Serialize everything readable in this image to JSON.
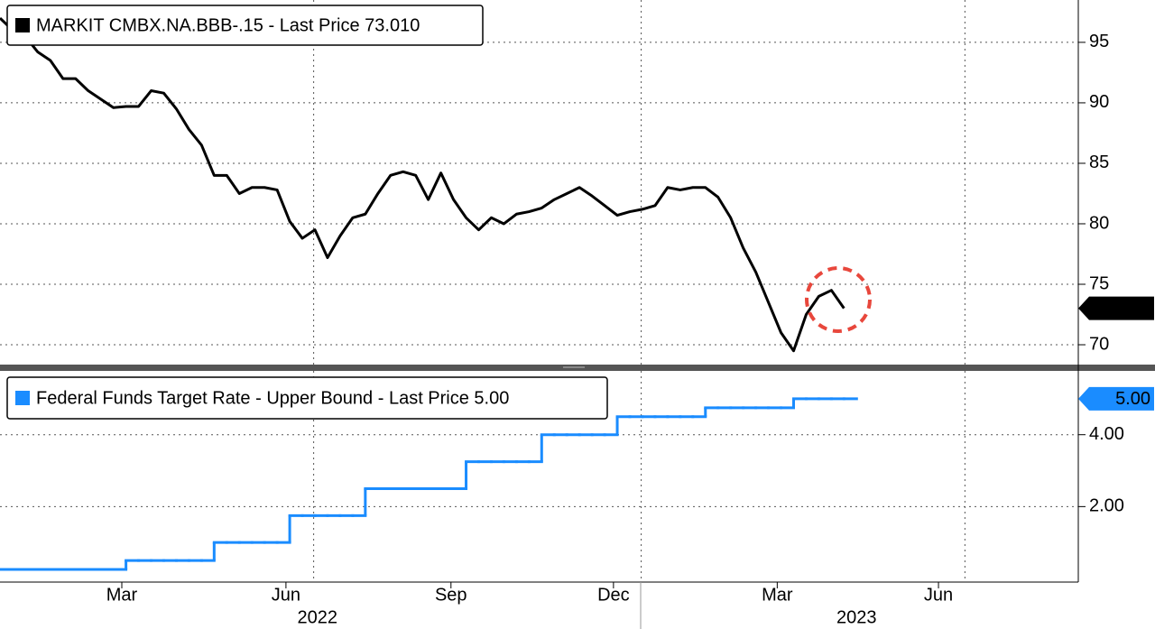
{
  "chart_data": [
    {
      "type": "line",
      "categories": [
        null,
        null,
        null,
        null,
        null,
        null,
        null,
        null,
        null,
        null,
        null,
        null,
        null,
        null,
        null,
        null,
        null,
        null,
        null,
        null,
        null,
        null,
        null,
        null,
        null,
        null,
        null,
        null,
        null,
        null,
        null,
        null,
        null,
        null,
        null,
        null,
        null,
        null,
        null,
        null,
        null,
        null,
        null,
        null,
        null,
        null,
        null,
        null,
        null,
        null,
        null,
        null,
        null,
        null,
        null,
        null,
        null,
        null,
        null,
        null,
        null,
        null,
        null,
        null,
        null,
        null,
        null,
        null
      ],
      "series": [
        {
          "name": "MARKIT CMBX.NA.BBB-.15 - Last Price 73.010",
          "color": "#000000",
          "values": [
            97,
            96,
            95.5,
            94.2,
            93.5,
            92.0,
            92.0,
            91.0,
            90.3,
            89.6,
            89.7,
            89.7,
            91.0,
            90.8,
            89.5,
            87.8,
            86.5,
            84.0,
            84.0,
            82.5,
            83.0,
            83.0,
            82.8,
            80.2,
            78.8,
            79.5,
            77.2,
            79.0,
            80.5,
            80.8,
            82.5,
            84.0,
            84.3,
            84.0,
            82.0,
            84.2,
            82.0,
            80.5,
            79.5,
            80.5,
            80.0,
            80.8,
            81.0,
            81.3,
            82.0,
            82.5,
            83.0,
            82.3,
            81.5,
            80.7,
            81.0,
            81.2,
            81.5,
            83.0,
            82.8,
            83.0,
            83.0,
            82.2,
            80.5,
            78.0,
            76.0,
            73.5,
            71.0,
            69.5,
            72.5,
            74.0,
            74.5,
            73.01
          ]
        }
      ],
      "last_label": "73.010",
      "xlim": [
        0,
        85.6
      ],
      "xgrid": [
        24.9,
        50.9,
        76.6
      ],
      "ylim": [
        68.36,
        98.5
      ],
      "yticks": [
        70,
        75,
        80,
        85,
        90,
        95
      ],
      "grid": true
    },
    {
      "type": "step",
      "categories": [
        null,
        null,
        null,
        null,
        null,
        null,
        null,
        null,
        null,
        null,
        null,
        null,
        null,
        null,
        null,
        null,
        null,
        null,
        null,
        null,
        null,
        null,
        null,
        null,
        null,
        null,
        null,
        null,
        null,
        null,
        null,
        null,
        null,
        null,
        null,
        null,
        null,
        null,
        null,
        null,
        null,
        null,
        null,
        null,
        null,
        null,
        null,
        null,
        null,
        null,
        null,
        null,
        null,
        null,
        null,
        null,
        null,
        null,
        null,
        null,
        null,
        null,
        null,
        null,
        null,
        null,
        null,
        null
      ],
      "series": [
        {
          "name": "Federal Funds Target Rate - Upper Bound - Last Price 5.00",
          "color": "#1a8cff",
          "values": [
            0.25,
            0.25,
            0.25,
            0.25,
            0.25,
            0.25,
            0.25,
            0.25,
            0.25,
            0.25,
            0.5,
            0.5,
            0.5,
            0.5,
            0.5,
            0.5,
            0.5,
            1.0,
            1.0,
            1.0,
            1.0,
            1.0,
            1.0,
            1.75,
            1.75,
            1.75,
            1.75,
            1.75,
            1.75,
            2.5,
            2.5,
            2.5,
            2.5,
            2.5,
            2.5,
            2.5,
            2.5,
            3.25,
            3.25,
            3.25,
            3.25,
            3.25,
            3.25,
            4.0,
            4.0,
            4.0,
            4.0,
            4.0,
            4.0,
            4.5,
            4.5,
            4.5,
            4.5,
            4.5,
            4.5,
            4.5,
            4.75,
            4.75,
            4.75,
            4.75,
            4.75,
            4.75,
            4.75,
            5.0,
            5.0,
            5.0,
            5.0,
            5.0
          ]
        }
      ],
      "last_label": "5.00",
      "xlim": [
        0,
        85.6
      ],
      "xgrid": [
        24.9,
        50.9,
        76.6
      ],
      "xticks": [
        {
          "value": 9.67,
          "label": "Mar"
        },
        {
          "value": 22.7,
          "label": "Jun"
        },
        {
          "value": 35.8,
          "label": "Sep"
        },
        {
          "value": 48.7,
          "label": "Dec"
        },
        {
          "value": 61.7,
          "label": "Mar"
        },
        {
          "value": 74.5,
          "label": "Jun"
        }
      ],
      "year_labels": [
        {
          "value": 25.2,
          "label": "2022"
        },
        {
          "value": 68,
          "label": "2023"
        }
      ],
      "ylim": [
        -0.1,
        5.775
      ],
      "yticks": [
        {
          "value": 2,
          "label": "2.00"
        },
        {
          "value": 4,
          "label": "4.00"
        }
      ],
      "grid": true
    }
  ]
}
